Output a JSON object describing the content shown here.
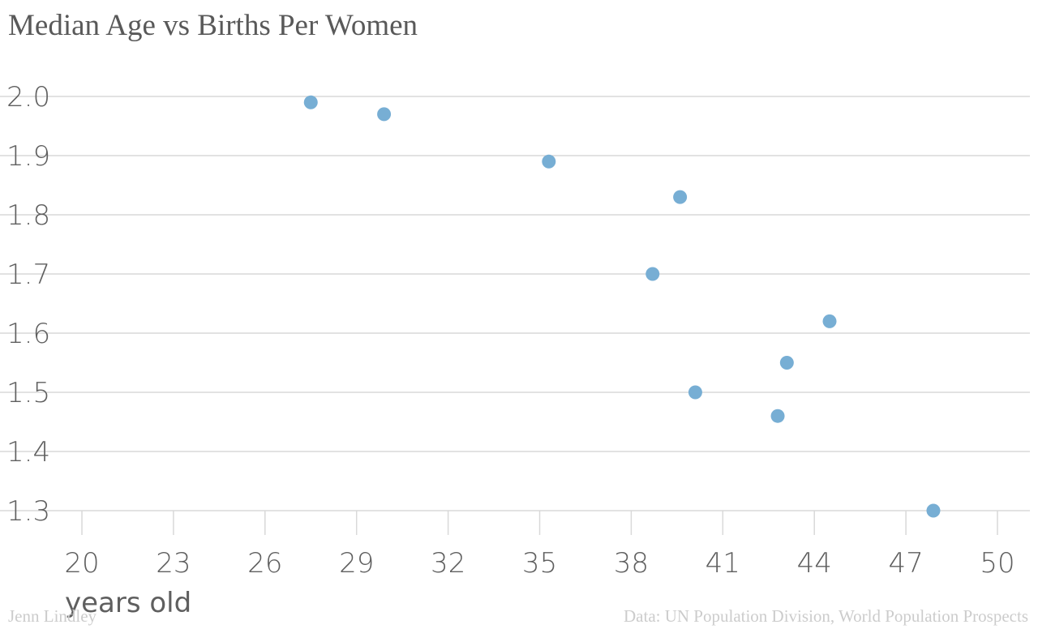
{
  "chart_data": {
    "type": "scatter",
    "title": "Median Age vs Births Per Women",
    "xlabel": "years old",
    "ylabel": "",
    "xlim": [
      20,
      50
    ],
    "ylim": [
      1.3,
      2.0
    ],
    "x_ticks": [
      "20",
      "23",
      "26",
      "29",
      "32",
      "35",
      "38",
      "41",
      "44",
      "47",
      "50"
    ],
    "y_ticks": [
      "2.0",
      "1.9",
      "1.8",
      "1.7",
      "1.6",
      "1.5",
      "1.4",
      "1.3"
    ],
    "grid": true,
    "legend": "none",
    "point_color": "#77aed4",
    "x": [
      27.5,
      29.9,
      35.3,
      39.6,
      38.7,
      44.5,
      43.1,
      40.1,
      42.8,
      47.9
    ],
    "y": [
      1.99,
      1.97,
      1.89,
      1.83,
      1.7,
      1.62,
      1.55,
      1.5,
      1.46,
      1.3
    ]
  },
  "footer": {
    "credit": "Jenn Lindley",
    "source": "Data: UN Population Division, World Population Prospects"
  }
}
